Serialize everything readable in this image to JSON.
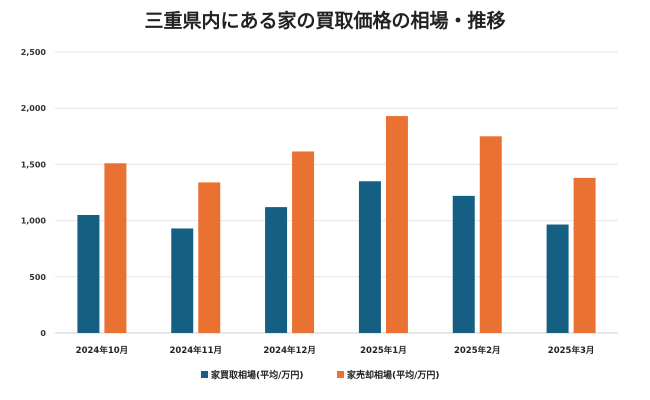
{
  "chart_data": {
    "type": "bar",
    "title": "三重県内にある家の買取価格の相場・推移",
    "xlabel": "",
    "ylabel": "",
    "categories": [
      "2024年10月",
      "2024年11月",
      "2024年12月",
      "2025年1月",
      "2025年2月",
      "2025年3月"
    ],
    "series": [
      {
        "name": "家買取相場(平均/万円)",
        "color": "#155f82",
        "values": [
          1050,
          930,
          1120,
          1350,
          1220,
          965
        ]
      },
      {
        "name": "家売却相場(平均/万円)",
        "color": "#e97132",
        "values": [
          1510,
          1340,
          1615,
          1930,
          1750,
          1380
        ]
      }
    ],
    "ylim": [
      0,
      2500
    ],
    "yticks": [
      "0",
      "500",
      "1,000",
      "1,500",
      "2,000",
      "2,500"
    ],
    "ytick_values": [
      0,
      500,
      1000,
      1500,
      2000,
      2500
    ],
    "grid": true,
    "legend": "bottom"
  }
}
